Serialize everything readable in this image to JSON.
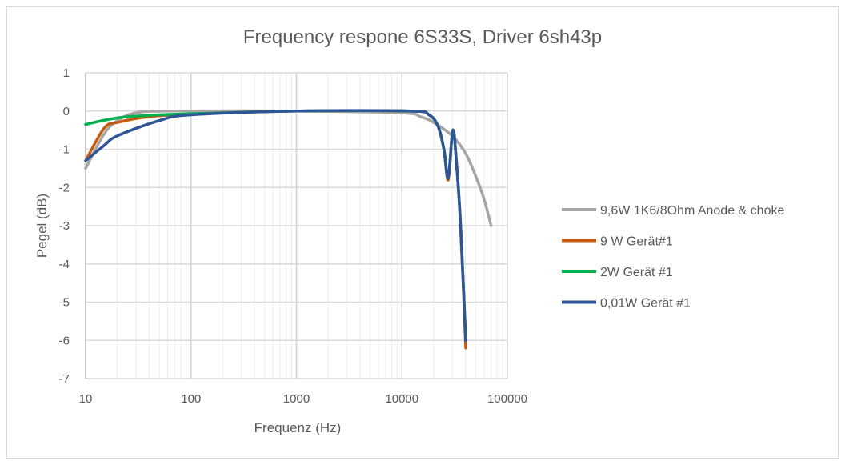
{
  "chart_data": {
    "type": "line",
    "title": "Frequency respone 6S33S, Driver 6sh43p",
    "xlabel": "Frequenz (Hz)",
    "ylabel": "Pegel (dB)",
    "xscale": "log",
    "xlim": [
      10,
      100000
    ],
    "ylim": [
      -7,
      1
    ],
    "xticks": [
      "10",
      "100",
      "1000",
      "10000",
      "100000"
    ],
    "xtick_values": [
      10,
      100,
      1000,
      10000,
      100000
    ],
    "yticks": [
      "1",
      "0",
      "-1",
      "-2",
      "-3",
      "-4",
      "-5",
      "-6",
      "-7"
    ],
    "ytick_values": [
      1,
      0,
      -1,
      -2,
      -3,
      -4,
      -5,
      -6,
      -7
    ],
    "grid": true,
    "legend_position": "right",
    "series": [
      {
        "name": "9,6W 1K6/8Ohm Anode & choke",
        "color": "#a5a5a5",
        "x": [
          10,
          15,
          20,
          30,
          60,
          1000,
          10000,
          15000,
          20000,
          30000,
          40000,
          50000,
          60000,
          70000
        ],
        "y": [
          -1.5,
          -0.6,
          -0.25,
          -0.05,
          0,
          0,
          -0.05,
          -0.15,
          -0.3,
          -0.65,
          -1.1,
          -1.7,
          -2.3,
          -3.0
        ]
      },
      {
        "name": "9 W Gerät#1",
        "color": "#c55a11",
        "x": [
          10,
          15,
          20,
          40,
          100,
          1000,
          12000,
          18000,
          22000,
          25000,
          27500,
          30400,
          33000,
          36000,
          40300
        ],
        "y": [
          -1.3,
          -0.45,
          -0.3,
          -0.15,
          -0.08,
          0,
          0,
          -0.1,
          -0.4,
          -1.0,
          -1.8,
          -0.5,
          -1.4,
          -3.0,
          -6.2
        ]
      },
      {
        "name": "2W Gerät #1",
        "color": "#00b050",
        "x": [
          10,
          20,
          50,
          200,
          1000,
          12000,
          18000,
          22000,
          25000,
          27500,
          30400,
          33000,
          36000,
          40300
        ],
        "y": [
          -0.35,
          -0.18,
          -0.1,
          -0.05,
          0,
          0,
          -0.1,
          -0.4,
          -1.0,
          -1.75,
          -0.5,
          -1.4,
          -3.0,
          -6.0
        ]
      },
      {
        "name": "0,01W Gerät #1",
        "color": "#2f5597",
        "x": [
          10,
          15,
          20,
          50,
          100,
          1000,
          12000,
          18000,
          22000,
          25000,
          27500,
          30400,
          33000,
          36000,
          40300
        ],
        "y": [
          -1.3,
          -0.9,
          -0.65,
          -0.25,
          -0.1,
          0,
          0,
          -0.1,
          -0.4,
          -1.0,
          -1.75,
          -0.5,
          -1.4,
          -3.0,
          -6.0
        ]
      }
    ]
  }
}
